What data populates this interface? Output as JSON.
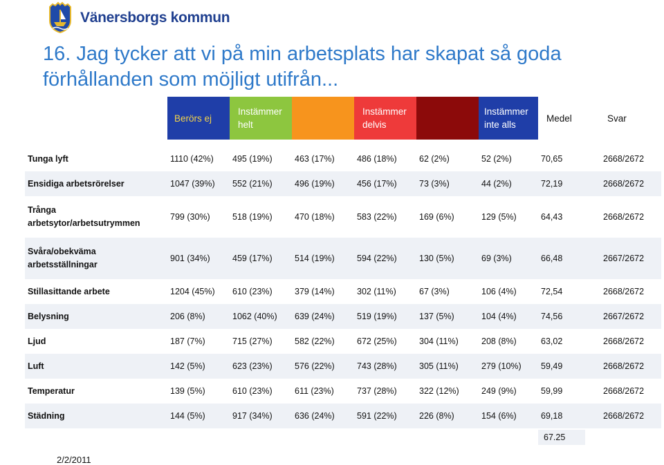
{
  "logo": {
    "brand": "Vänersborgs kommun"
  },
  "title": "16. Jag tycker att vi på min arbetsplats har skapat så goda  förhållanden som möjligt utifrån...",
  "headers": [
    {
      "label": "",
      "bg": "#ffffff",
      "color": "#111111"
    },
    {
      "label": "Berörs ej",
      "bg": "#1f3ea8",
      "color": "#f3d34a"
    },
    {
      "label": "Instämmer helt",
      "bg": "#8dc63f",
      "color": "#ffffff"
    },
    {
      "label": "",
      "bg": "#f7941d",
      "color": "#ffffff"
    },
    {
      "label": "Instämmer delvis",
      "bg": "#ee3a3a",
      "color": "#ffffff"
    },
    {
      "label": "",
      "bg": "#8c0a0a",
      "color": "#ffffff"
    },
    {
      "label": "Instämmer inte alls",
      "bg": "#1f3ea8",
      "color": "#ffffff"
    },
    {
      "label": "Medel",
      "bg": "#ffffff",
      "color": "#111111"
    },
    {
      "label": "Svar",
      "bg": "#ffffff",
      "color": "#111111"
    }
  ],
  "rows": [
    {
      "label": "Tunga lyft",
      "tall": false,
      "cells": [
        "1110 (42%)",
        "495 (19%)",
        "463 (17%)",
        "486 (18%)",
        "62 (2%)",
        "52 (2%)",
        "70,65",
        "2668/2672"
      ]
    },
    {
      "label": "Ensidiga arbetsrörelser",
      "tall": false,
      "cells": [
        "1047 (39%)",
        "552 (21%)",
        "496 (19%)",
        "456 (17%)",
        "73 (3%)",
        "44 (2%)",
        "72,19",
        "2668/2672"
      ]
    },
    {
      "label": "Trånga arbetsytor/arbetsutrymmen",
      "tall": true,
      "cells": [
        "799 (30%)",
        "518 (19%)",
        "470 (18%)",
        "583 (22%)",
        "169 (6%)",
        "129 (5%)",
        "64,43",
        "2668/2672"
      ]
    },
    {
      "label": "Svåra/obekväma arbetsställningar",
      "tall": true,
      "cells": [
        "901 (34%)",
        "459 (17%)",
        "514 (19%)",
        "594 (22%)",
        "130 (5%)",
        "69 (3%)",
        "66,48",
        "2667/2672"
      ]
    },
    {
      "label": "Stillasittande arbete",
      "tall": false,
      "cells": [
        "1204 (45%)",
        "610 (23%)",
        "379 (14%)",
        "302 (11%)",
        "67 (3%)",
        "106 (4%)",
        "72,54",
        "2668/2672"
      ]
    },
    {
      "label": "Belysning",
      "tall": false,
      "cells": [
        "206 (8%)",
        "1062 (40%)",
        "639 (24%)",
        "519 (19%)",
        "137 (5%)",
        "104 (4%)",
        "74,56",
        "2667/2672"
      ]
    },
    {
      "label": "Ljud",
      "tall": false,
      "cells": [
        "187 (7%)",
        "715 (27%)",
        "582 (22%)",
        "672 (25%)",
        "304 (11%)",
        "208 (8%)",
        "63,02",
        "2668/2672"
      ]
    },
    {
      "label": "Luft",
      "tall": false,
      "cells": [
        "142 (5%)",
        "623 (23%)",
        "576 (22%)",
        "743 (28%)",
        "305 (11%)",
        "279 (10%)",
        "59,49",
        "2668/2672"
      ]
    },
    {
      "label": "Temperatur",
      "tall": false,
      "cells": [
        "139 (5%)",
        "610 (23%)",
        "611 (23%)",
        "737 (28%)",
        "322 (12%)",
        "249 (9%)",
        "59,99",
        "2668/2672"
      ]
    },
    {
      "label": "Städning",
      "tall": false,
      "cells": [
        "144 (5%)",
        "917 (34%)",
        "636 (24%)",
        "591 (22%)",
        "226 (8%)",
        "154 (6%)",
        "69,18",
        "2668/2672"
      ]
    }
  ],
  "medel_total": "67.25",
  "date": "2/2/2011"
}
